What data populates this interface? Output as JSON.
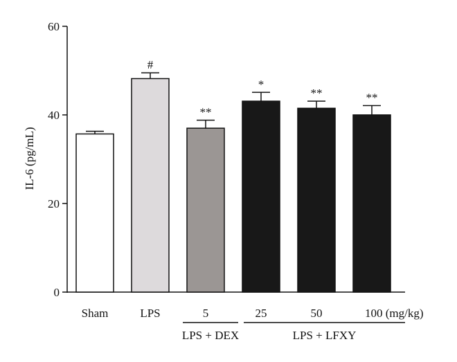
{
  "chart_data": {
    "type": "bar",
    "title": "",
    "xlabel": "",
    "ylabel": "IL-6 (pg/mL)",
    "ylim": [
      0,
      60
    ],
    "yticks": [
      0,
      20,
      40,
      60
    ],
    "grid": false,
    "categories": [
      "Sham",
      "LPS",
      "5",
      "25",
      "50",
      "100 (mg/kg)"
    ],
    "values": [
      35.7,
      48.2,
      37.0,
      43.1,
      41.5,
      40.0
    ],
    "errors": [
      0.6,
      1.3,
      1.8,
      2.0,
      1.6,
      2.1
    ],
    "significance": [
      "",
      "#",
      "**",
      "*",
      "**",
      "**"
    ],
    "bar_colors": [
      "#ffffff",
      "#dddadc",
      "#9b9694",
      "#181818",
      "#181818",
      "#181818"
    ],
    "groups": [
      {
        "label": "LPS + DEX",
        "from": 2,
        "to": 2
      },
      {
        "label": "LPS + LFXY",
        "from": 3,
        "to": 5
      }
    ]
  }
}
